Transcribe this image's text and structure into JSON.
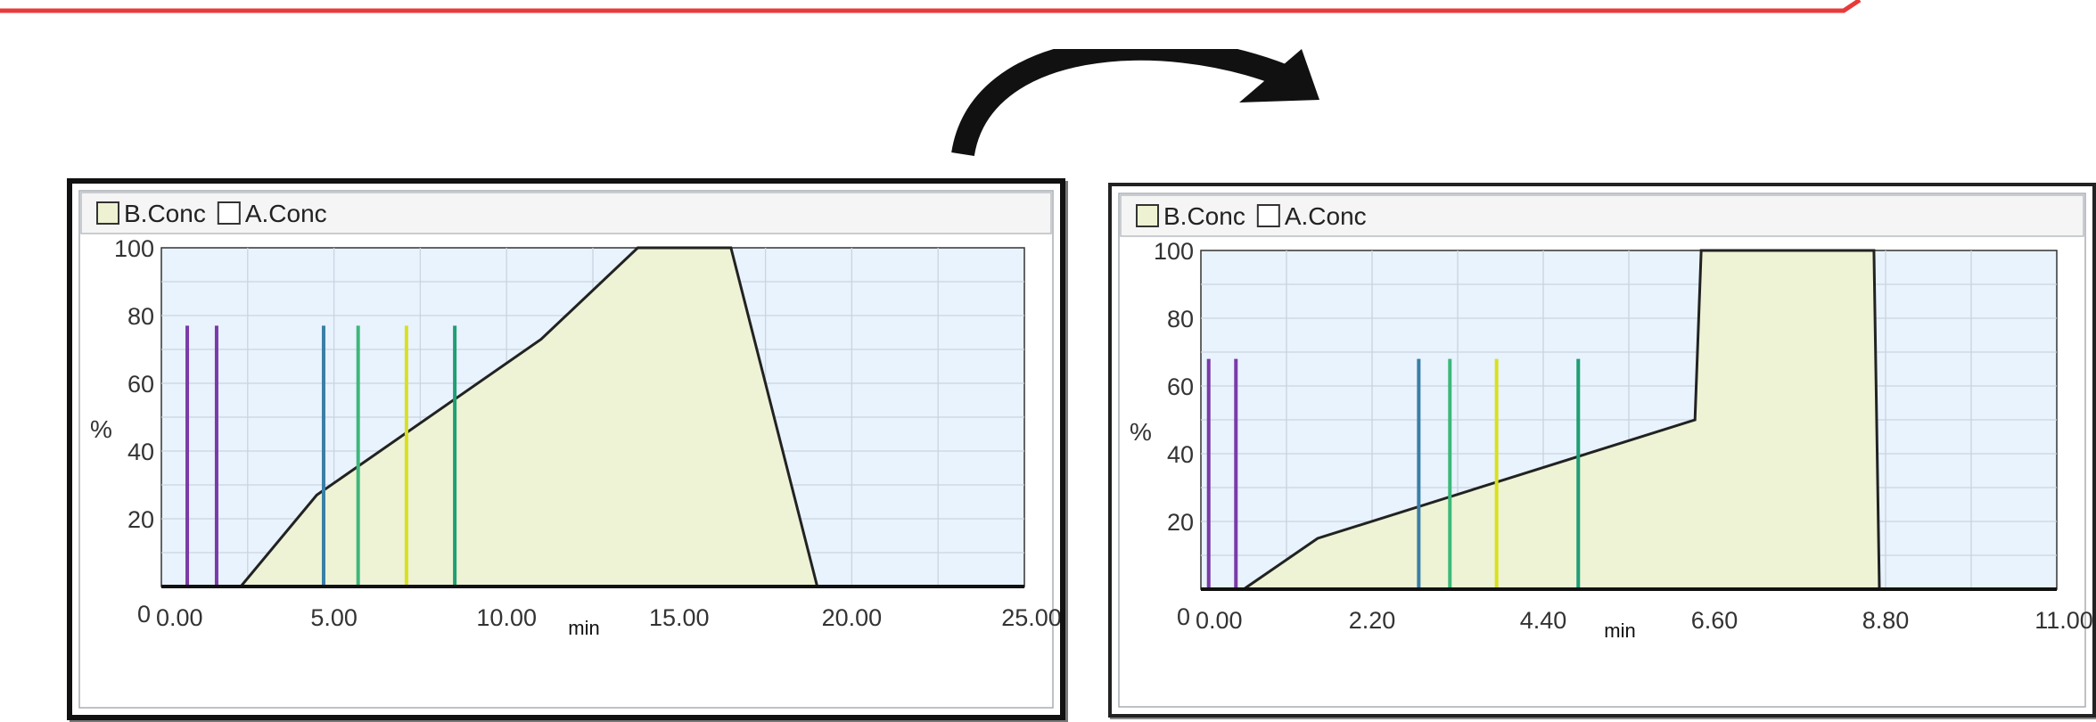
{
  "colors": {
    "accent_red": "#e83a3a",
    "plot_bg": "#e8f3fd",
    "area_fill": "#edf3d4",
    "grid": "#c9d4e0",
    "axis": "#222222",
    "curve": "#222222",
    "legend_b_fill": "#eef2d2"
  },
  "icons": {
    "transition": "curved-arrow-icon"
  },
  "chart_data": [
    {
      "type": "area",
      "legend": [
        {
          "name": "B.Conc",
          "swatch": "#eef2d2"
        },
        {
          "name": "A.Conc",
          "swatch": "#ffffff"
        }
      ],
      "legend_position": "top-left",
      "ylabel": "%",
      "xlabel": "min",
      "xlim": [
        0,
        25
      ],
      "ylim": [
        0,
        100
      ],
      "xticks": [
        "0.00",
        "5.00",
        "10.00",
        "15.00",
        "20.00",
        "25.00"
      ],
      "xtick_values": [
        0,
        5,
        10,
        15,
        20,
        25
      ],
      "yticks": [
        "0",
        "20",
        "40",
        "60",
        "80",
        "100"
      ],
      "ytick_values": [
        0,
        20,
        40,
        60,
        80,
        100
      ],
      "grid": true,
      "x_minor_step": 2.5,
      "y_minor_step": 10,
      "b_conc": {
        "x": [
          0,
          2.3,
          4.5,
          11.0,
          13.8,
          16.5,
          19.0,
          25
        ],
        "y": [
          0,
          0,
          27,
          73,
          100,
          100,
          0,
          0
        ]
      },
      "markers": [
        {
          "x": 0.75,
          "color": "#7b3aa8",
          "y_top": 77
        },
        {
          "x": 1.6,
          "color": "#7b3aa8",
          "y_top": 77
        },
        {
          "x": 4.7,
          "color": "#3a7fa6",
          "y_top": 77
        },
        {
          "x": 5.7,
          "color": "#3db87a",
          "y_top": 77
        },
        {
          "x": 7.1,
          "color": "#d8e020",
          "y_top": 77
        },
        {
          "x": 8.5,
          "color": "#1f9e74",
          "y_top": 77
        }
      ]
    },
    {
      "type": "area",
      "legend": [
        {
          "name": "B.Conc",
          "swatch": "#eef2d2"
        },
        {
          "name": "A.Conc",
          "swatch": "#ffffff"
        }
      ],
      "legend_position": "top-left",
      "ylabel": "%",
      "xlabel": "min",
      "xlim": [
        0,
        11
      ],
      "ylim": [
        0,
        100
      ],
      "xticks": [
        "0.00",
        "2.20",
        "4.40",
        "6.60",
        "8.80",
        "11.00"
      ],
      "xtick_values": [
        0,
        2.2,
        4.4,
        6.6,
        8.8,
        11
      ],
      "yticks": [
        "0",
        "20",
        "40",
        "60",
        "80",
        "100"
      ],
      "ytick_values": [
        0,
        20,
        40,
        60,
        80,
        100
      ],
      "grid": true,
      "x_minor_step": 1.1,
      "y_minor_step": 10,
      "b_conc": {
        "x": [
          0,
          0.3,
          0.55,
          1.5,
          6.35,
          6.43,
          8.65,
          8.72,
          11
        ],
        "y": [
          0,
          0,
          0,
          15,
          50,
          100,
          100,
          0,
          0
        ]
      },
      "markers": [
        {
          "x": 0.1,
          "color": "#7b3aa8",
          "y_top": 68
        },
        {
          "x": 0.45,
          "color": "#7b3aa8",
          "y_top": 68
        },
        {
          "x": 2.8,
          "color": "#3a7fa6",
          "y_top": 68
        },
        {
          "x": 3.2,
          "color": "#3db87a",
          "y_top": 68
        },
        {
          "x": 3.8,
          "color": "#d8e020",
          "y_top": 68
        },
        {
          "x": 4.85,
          "color": "#1f9e74",
          "y_top": 68
        }
      ]
    }
  ]
}
